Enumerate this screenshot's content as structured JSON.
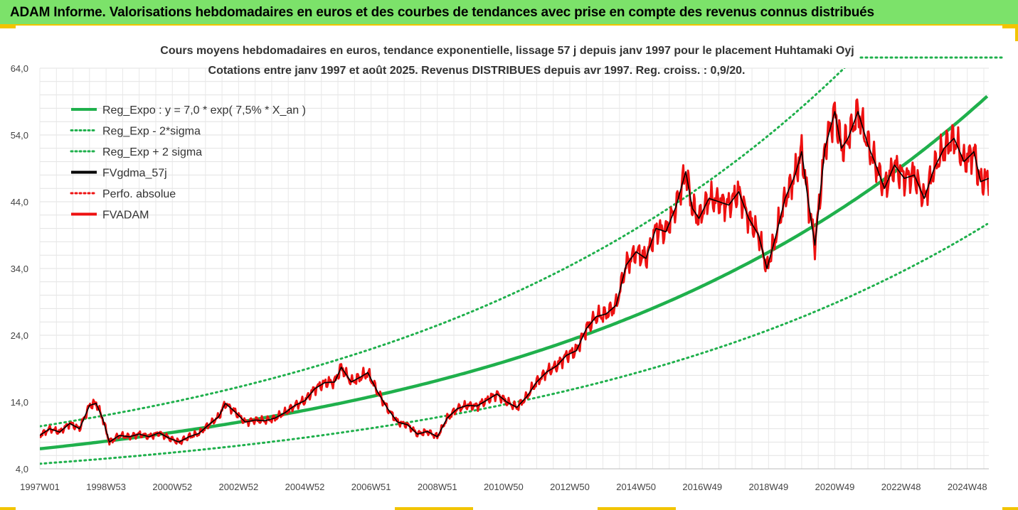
{
  "banner": {
    "title": "ADAM Informe. Valorisations hebdomadaires en euros et des courbes de tendances avec prise en compte des revenus connus distribués"
  },
  "colors": {
    "banner_bg": "#7ce26a",
    "banner_border": "#f2c400",
    "trend_green": "#1fb04c",
    "smoothed_black": "#000000",
    "price_red": "#ee1111"
  },
  "chart_data": {
    "type": "line",
    "title": "Cours moyens hebdomadaires en euros, tendance exponentielle, lissage 57 j depuis janv 1997 pour le placement Huhtamaki Oyj",
    "subtitle": "Cotations entre janv 1997 et août 2025. Revenus DISTRIBUES depuis avr 1997. Reg. croiss. : 0,9/20.",
    "xlabel": "",
    "ylabel": "",
    "ylim": [
      4,
      64
    ],
    "xlim": [
      1997.0,
      2025.65
    ],
    "y_ticks": [
      "4,0",
      "14,0",
      "24,0",
      "34,0",
      "44,0",
      "54,0",
      "64,0"
    ],
    "y_tick_values": [
      4,
      14,
      24,
      34,
      44,
      54,
      64
    ],
    "x_ticks": [
      "1997W01",
      "1998W53",
      "2000W52",
      "2002W52",
      "2004W52",
      "2006W51",
      "2008W51",
      "2010W50",
      "2012W50",
      "2014W50",
      "2016W49",
      "2018W49",
      "2020W49",
      "2022W48",
      "2024W48"
    ],
    "x_tick_values": [
      1997.0,
      1999.0,
      2001.0,
      2003.0,
      2005.0,
      2007.0,
      2009.0,
      2011.0,
      2013.0,
      2015.0,
      2017.0,
      2019.0,
      2021.0,
      2023.0,
      2025.0
    ],
    "grid": true,
    "legend": {
      "placement": "top-left",
      "entries": [
        {
          "label": "Reg_Expo : y = 7,0 * exp( 7,5% *  X_an )",
          "style": "solid",
          "color": "#1fb04c"
        },
        {
          "label": "Reg_Exp - 2*sigma",
          "style": "dotted",
          "color": "#1fb04c"
        },
        {
          "label": "Reg_Exp + 2 sigma",
          "style": "dotted",
          "color": "#1fb04c"
        },
        {
          "label": "FVgdma_57j",
          "style": "solid",
          "color": "#000000"
        },
        {
          "label": "Perfo. absolue",
          "style": "dotted",
          "color": "#ee1111"
        },
        {
          "label": "FVADAM",
          "style": "solid",
          "color": "#ee1111"
        }
      ]
    },
    "regression": {
      "a": 7.0,
      "rate": 0.075,
      "lower_factor": 0.68,
      "upper_factor": 1.48
    },
    "series": [
      {
        "name": "FVADAM",
        "x": [
          1997.0,
          1997.3,
          1997.6,
          1997.9,
          1998.2,
          1998.5,
          1998.7,
          1998.9,
          1999.1,
          1999.4,
          1999.7,
          2000.0,
          2000.3,
          2000.6,
          2000.9,
          2001.2,
          2001.5,
          2001.8,
          2002.1,
          2002.4,
          2002.6,
          2002.9,
          2003.2,
          2003.5,
          2003.8,
          2004.1,
          2004.4,
          2004.7,
          2005.0,
          2005.3,
          2005.6,
          2005.9,
          2006.1,
          2006.4,
          2006.7,
          2006.9,
          2007.2,
          2007.5,
          2007.8,
          2008.1,
          2008.4,
          2008.7,
          2009.0,
          2009.3,
          2009.6,
          2009.9,
          2010.2,
          2010.5,
          2010.8,
          2011.1,
          2011.4,
          2011.7,
          2012.0,
          2012.3,
          2012.6,
          2012.9,
          2013.2,
          2013.5,
          2013.8,
          2014.1,
          2014.4,
          2014.7,
          2015.0,
          2015.3,
          2015.6,
          2015.9,
          2016.2,
          2016.5,
          2016.7,
          2016.9,
          2017.2,
          2017.5,
          2017.8,
          2018.1,
          2018.4,
          2018.7,
          2018.95,
          2019.2,
          2019.5,
          2019.8,
          2020.0,
          2020.2,
          2020.4,
          2020.7,
          2021.0,
          2021.2,
          2021.4,
          2021.7,
          2022.0,
          2022.2,
          2022.5,
          2022.8,
          2023.1,
          2023.4,
          2023.7,
          2024.0,
          2024.3,
          2024.6,
          2024.9,
          2025.2,
          2025.4,
          2025.65
        ],
        "values": [
          9.0,
          10.0,
          9.5,
          10.8,
          10.0,
          13.5,
          13.8,
          11.5,
          8.0,
          9.0,
          8.8,
          9.2,
          8.8,
          9.4,
          8.6,
          8.0,
          8.8,
          9.3,
          10.6,
          11.8,
          13.8,
          12.5,
          11.0,
          11.3,
          11.2,
          11.6,
          12.4,
          13.5,
          14.2,
          16.0,
          16.9,
          17.0,
          19.2,
          17.0,
          17.8,
          18.4,
          15.5,
          13.0,
          11.0,
          10.6,
          9.2,
          9.6,
          8.8,
          11.6,
          13.0,
          13.5,
          13.4,
          14.3,
          15.2,
          14.0,
          13.2,
          14.8,
          17.0,
          18.5,
          19.4,
          21.0,
          21.7,
          25.0,
          26.8,
          27.2,
          28.5,
          34.5,
          36.5,
          35.5,
          40.0,
          39.5,
          43.2,
          48.5,
          43.0,
          41.5,
          44.5,
          44.0,
          43.5,
          45.5,
          41.5,
          39.0,
          34.0,
          38.5,
          44.5,
          48.0,
          51.5,
          44.0,
          37.5,
          52.0,
          57.5,
          52.0,
          53.5,
          57.5,
          52.5,
          50.0,
          46.0,
          49.5,
          47.5,
          48.0,
          44.5,
          49.0,
          52.0,
          53.5,
          50.0,
          51.5,
          47.0,
          47.5
        ]
      }
    ]
  }
}
